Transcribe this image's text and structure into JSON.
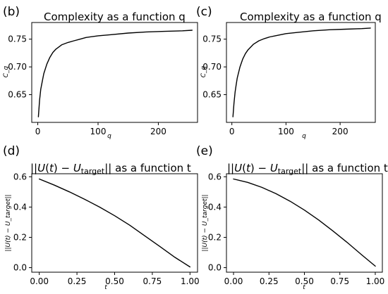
{
  "chart_data": [
    {
      "panel_label": "(b)",
      "type": "line",
      "title": "Complexity as a function q",
      "xlabel": "q",
      "ylabel": "C_q",
      "xlim": [
        -10,
        265
      ],
      "ylim": [
        0.6,
        0.78
      ],
      "xticks": [
        0,
        100,
        200
      ],
      "yticks": [
        0.65,
        0.7,
        0.75
      ],
      "xtick_labels": [
        "0",
        "100",
        "200"
      ],
      "ytick_labels": [
        "0.65",
        "0.70",
        "0.75"
      ],
      "grid": false,
      "series": [
        {
          "x": [
            1,
            3,
            5,
            8,
            10,
            15,
            20,
            25,
            30,
            40,
            50,
            60,
            70,
            80,
            100,
            120,
            150,
            180,
            210,
            240,
            256
          ],
          "y": [
            0.61,
            0.64,
            0.66,
            0.677,
            0.688,
            0.705,
            0.717,
            0.726,
            0.732,
            0.74,
            0.744,
            0.747,
            0.75,
            0.753,
            0.756,
            0.758,
            0.761,
            0.763,
            0.764,
            0.765,
            0.766
          ]
        }
      ]
    },
    {
      "panel_label": "(c)",
      "type": "line",
      "title": "Complexity as a function q",
      "xlabel": "q",
      "ylabel": "C_q",
      "xlim": [
        -10,
        265
      ],
      "ylim": [
        0.6,
        0.78
      ],
      "xticks": [
        0,
        100,
        200
      ],
      "yticks": [
        0.65,
        0.7,
        0.75
      ],
      "xtick_labels": [
        "0",
        "100",
        "200"
      ],
      "ytick_labels": [
        "0.65",
        "0.70",
        "0.75"
      ],
      "grid": false,
      "series": [
        {
          "x": [
            2,
            4,
            6,
            8,
            10,
            15,
            20,
            25,
            30,
            40,
            50,
            60,
            70,
            80,
            100,
            120,
            150,
            180,
            210,
            240,
            256
          ],
          "y": [
            0.61,
            0.635,
            0.655,
            0.668,
            0.68,
            0.7,
            0.714,
            0.724,
            0.731,
            0.741,
            0.747,
            0.751,
            0.754,
            0.756,
            0.76,
            0.762,
            0.765,
            0.767,
            0.768,
            0.769,
            0.77
          ]
        }
      ]
    },
    {
      "panel_label": "(d)",
      "type": "line",
      "title": "||U(t) − U_target|| as a function t",
      "title_parts": [
        "||",
        "U",
        "(",
        "t",
        ") − ",
        "U",
        "target",
        "|| as a function t"
      ],
      "xlabel": "t",
      "ylabel": "||U(t) − U_target||",
      "xlim": [
        -0.05,
        1.05
      ],
      "ylim": [
        -0.03,
        0.62
      ],
      "xticks": [
        0.0,
        0.25,
        0.5,
        0.75,
        1.0
      ],
      "yticks": [
        0.0,
        0.2,
        0.4,
        0.6
      ],
      "xtick_labels": [
        "0.00",
        "0.25",
        "0.50",
        "0.75",
        "1.00"
      ],
      "ytick_labels": [
        "0.0",
        "0.2",
        "0.4",
        "0.6"
      ],
      "grid": false,
      "series": [
        {
          "x": [
            0.0,
            0.1,
            0.2,
            0.3,
            0.4,
            0.5,
            0.6,
            0.7,
            0.8,
            0.9,
            1.0
          ],
          "y": [
            0.585,
            0.545,
            0.5,
            0.452,
            0.4,
            0.343,
            0.28,
            0.21,
            0.14,
            0.068,
            0.005
          ]
        }
      ]
    },
    {
      "panel_label": "(e)",
      "type": "line",
      "title": "||U(t) − U_target|| as a function t",
      "title_parts": [
        "||",
        "U",
        "(",
        "t",
        ") − ",
        "U",
        "target",
        "|| as a function t"
      ],
      "xlabel": "t",
      "ylabel": "||U(t) − U_target||",
      "xlim": [
        -0.05,
        1.05
      ],
      "ylim": [
        -0.03,
        0.62
      ],
      "xticks": [
        0.0,
        0.25,
        0.5,
        0.75,
        1.0
      ],
      "yticks": [
        0.0,
        0.2,
        0.4,
        0.6
      ],
      "xtick_labels": [
        "0.00",
        "0.25",
        "0.50",
        "0.75",
        "1.00"
      ],
      "ytick_labels": [
        "0.0",
        "0.2",
        "0.4",
        "0.6"
      ],
      "grid": false,
      "series": [
        {
          "x": [
            0.0,
            0.1,
            0.2,
            0.3,
            0.4,
            0.5,
            0.6,
            0.7,
            0.8,
            0.9,
            1.0
          ],
          "y": [
            0.585,
            0.563,
            0.53,
            0.488,
            0.438,
            0.38,
            0.315,
            0.243,
            0.168,
            0.088,
            0.01
          ]
        }
      ]
    }
  ]
}
